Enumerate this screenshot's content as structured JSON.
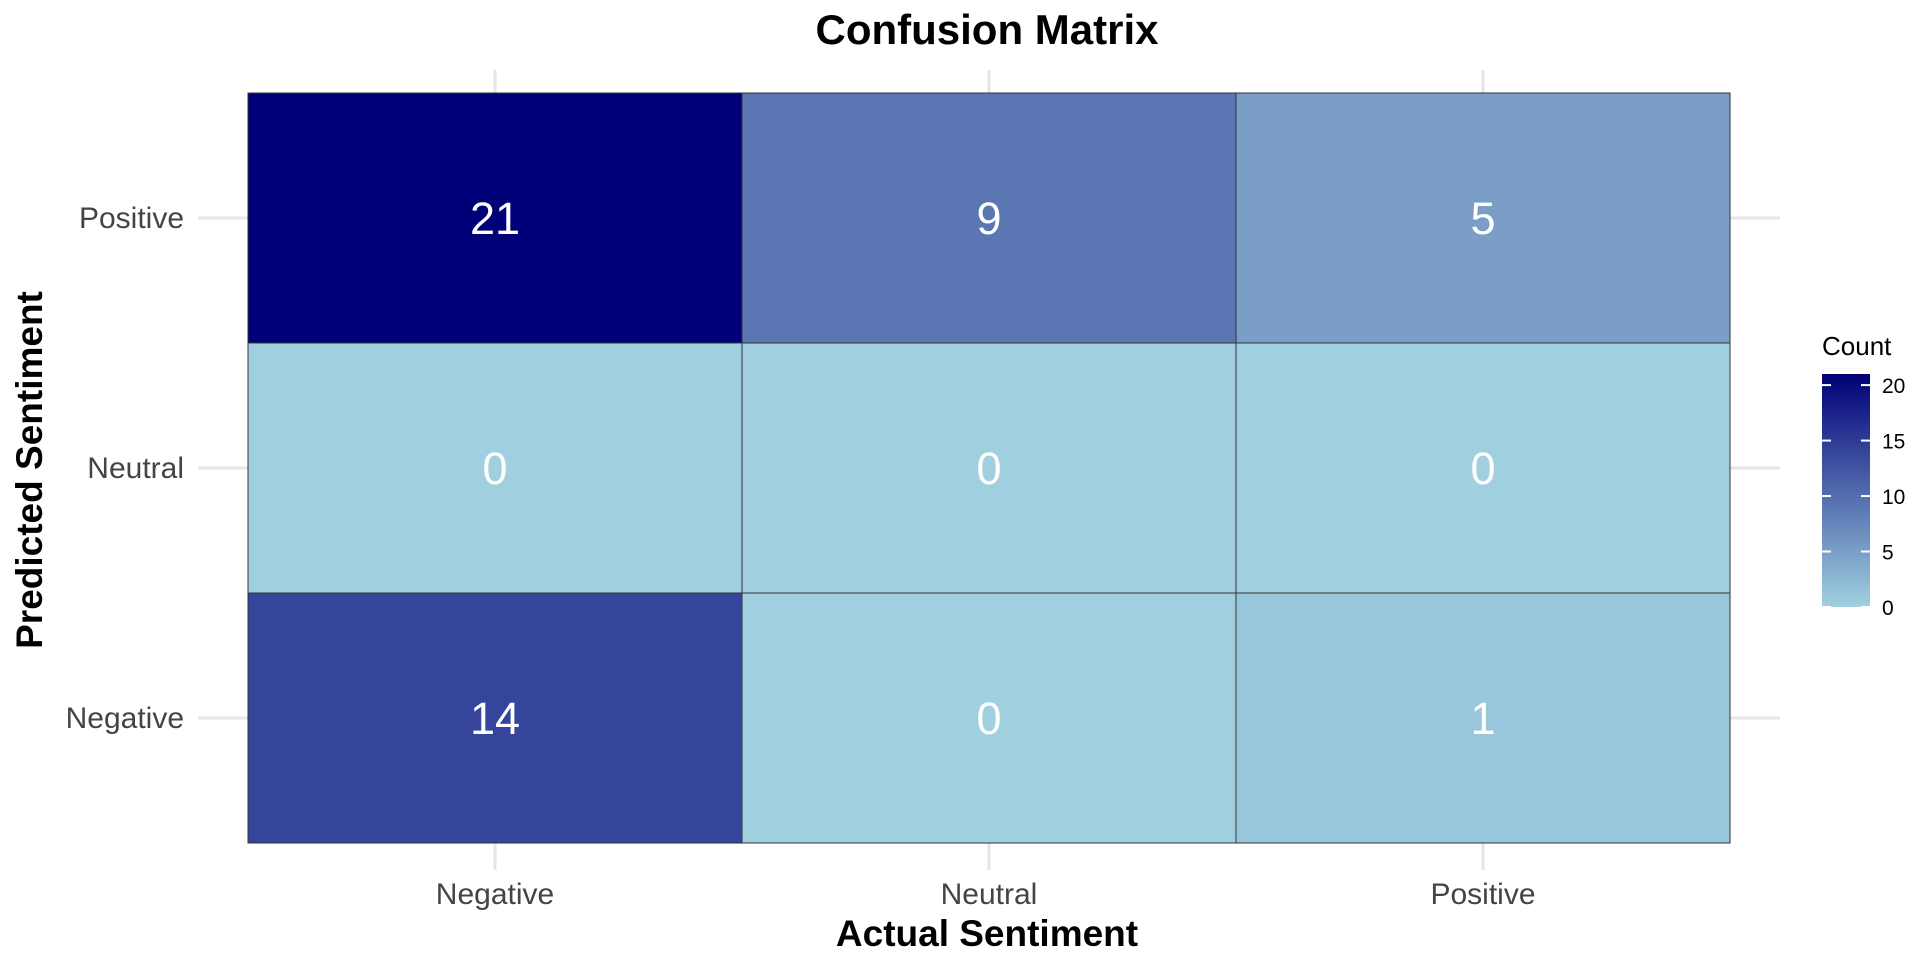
{
  "chart_data": {
    "type": "heatmap",
    "title": "Confusion Matrix",
    "xlabel": "Actual Sentiment",
    "ylabel": "Predicted Sentiment",
    "x_categories": [
      "Negative",
      "Neutral",
      "Positive"
    ],
    "y_categories": [
      "Negative",
      "Neutral",
      "Positive"
    ],
    "cells": [
      {
        "actual": "Negative",
        "predicted": "Positive",
        "value": 21
      },
      {
        "actual": "Neutral",
        "predicted": "Positive",
        "value": 9
      },
      {
        "actual": "Positive",
        "predicted": "Positive",
        "value": 5
      },
      {
        "actual": "Negative",
        "predicted": "Neutral",
        "value": 0
      },
      {
        "actual": "Neutral",
        "predicted": "Neutral",
        "value": 0
      },
      {
        "actual": "Positive",
        "predicted": "Neutral",
        "value": 0
      },
      {
        "actual": "Negative",
        "predicted": "Negative",
        "value": 14
      },
      {
        "actual": "Neutral",
        "predicted": "Negative",
        "value": 0
      },
      {
        "actual": "Positive",
        "predicted": "Negative",
        "value": 1
      }
    ],
    "legend": {
      "title": "Count",
      "ticks": [
        0,
        5,
        10,
        15,
        20
      ],
      "range": [
        0,
        21
      ],
      "placement": "right"
    },
    "colors": {
      "low": "#a0d0e0",
      "high": "#000078",
      "cell_text": "#ffffff",
      "cell_border": "#333333"
    },
    "grid": true
  }
}
